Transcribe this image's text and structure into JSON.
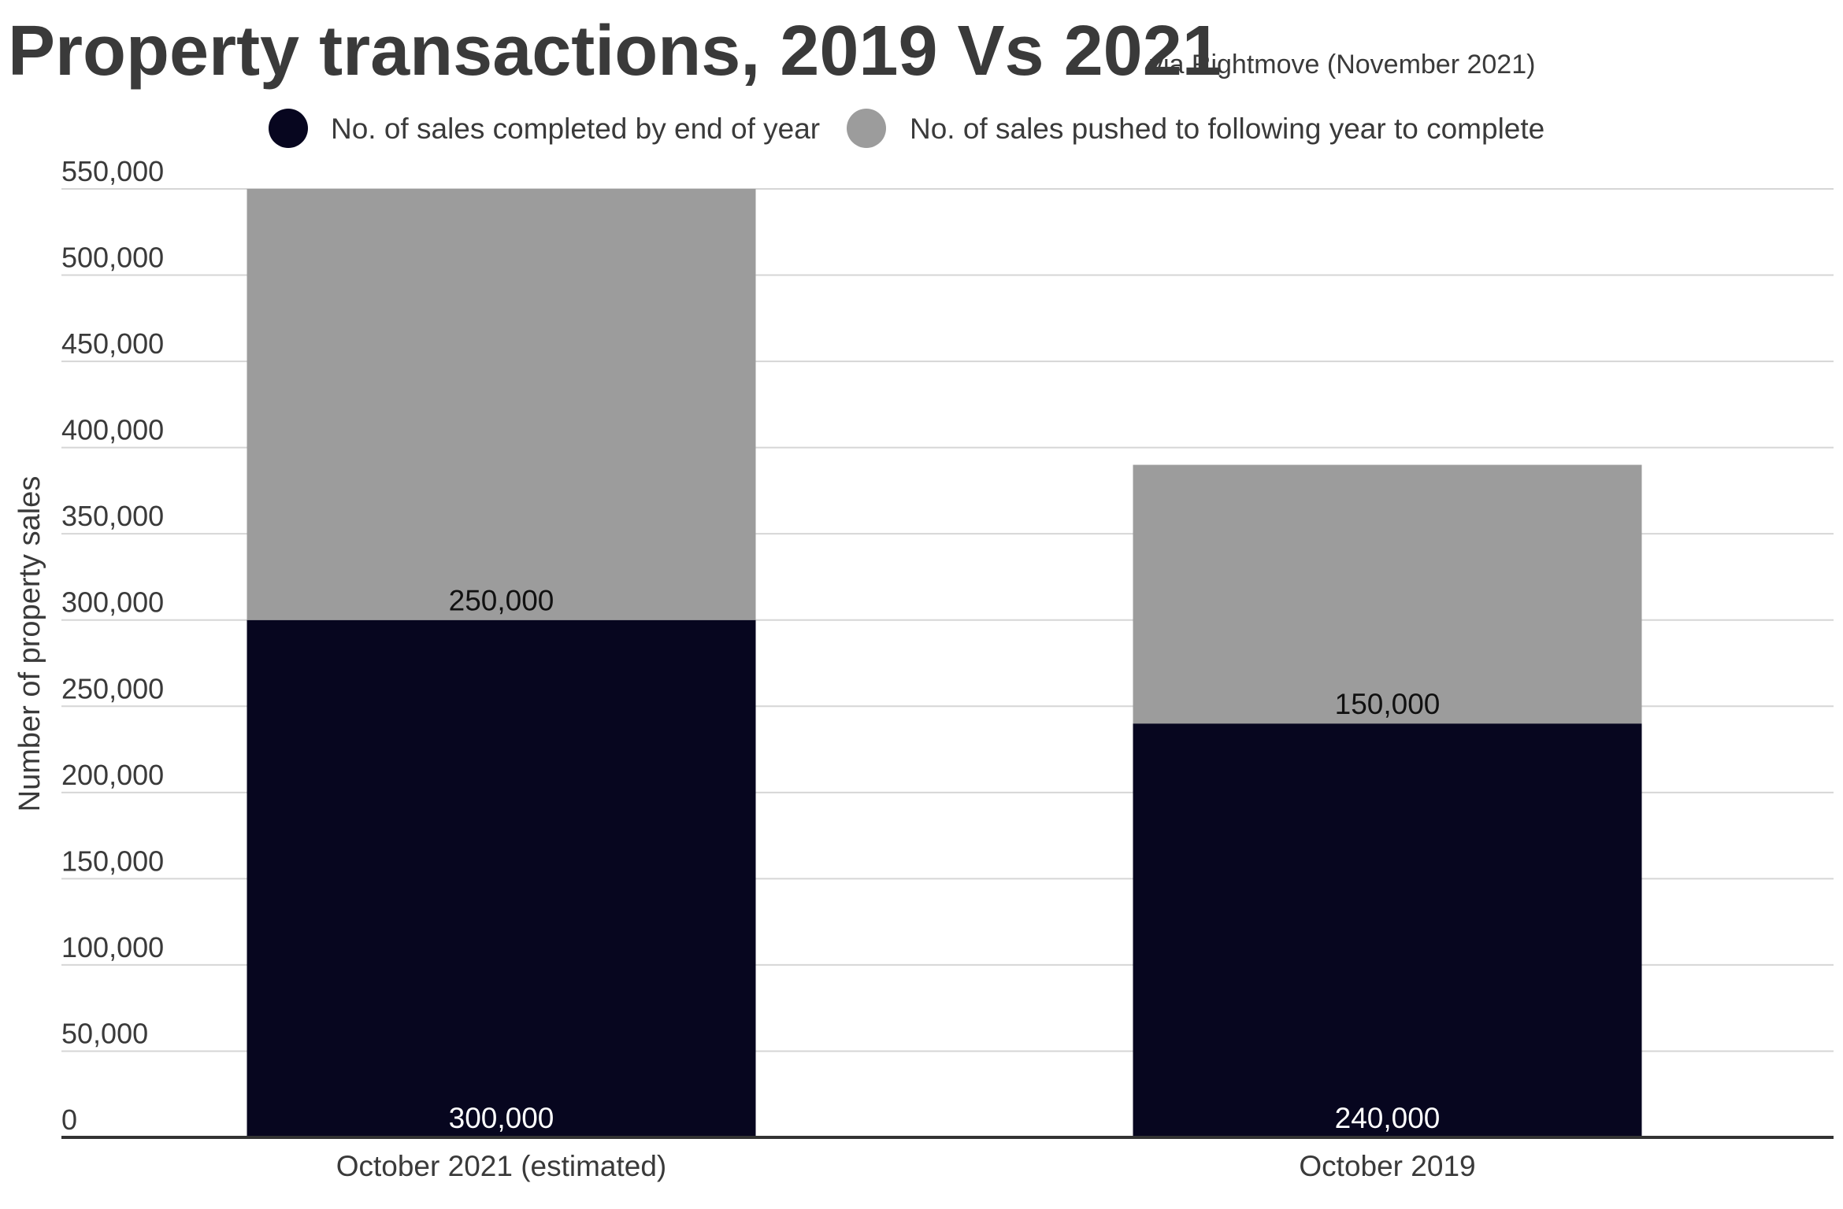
{
  "chart_data": {
    "type": "bar",
    "stacked": true,
    "title": "Property transactions, 2019 Vs 2021",
    "subtitle": "via Rightmove (November 2021)",
    "xlabel": "",
    "ylabel": "Number of property sales",
    "categories": [
      "October 2021 (estimated)",
      "October 2019"
    ],
    "series": [
      {
        "name": "No. of sales completed by end of year",
        "values": [
          300000,
          240000
        ],
        "labels": [
          "300,000",
          "240,000"
        ],
        "color": "#07061f",
        "label_color": "#ffffff"
      },
      {
        "name": "No. of sales pushed to following year to complete",
        "values": [
          250000,
          150000
        ],
        "labels": [
          "250,000",
          "150,000"
        ],
        "color": "#9c9c9c",
        "label_color": "#111111"
      }
    ],
    "ylim": [
      0,
      550000
    ],
    "yticks": [
      0,
      50000,
      100000,
      150000,
      200000,
      250000,
      300000,
      350000,
      400000,
      450000,
      500000,
      550000
    ],
    "ytick_labels": [
      "0",
      "50,000",
      "100,000",
      "150,000",
      "200,000",
      "250,000",
      "300,000",
      "350,000",
      "400,000",
      "450,000",
      "500,000",
      "550,000"
    ],
    "grid": true,
    "legend_position": "top-center"
  }
}
